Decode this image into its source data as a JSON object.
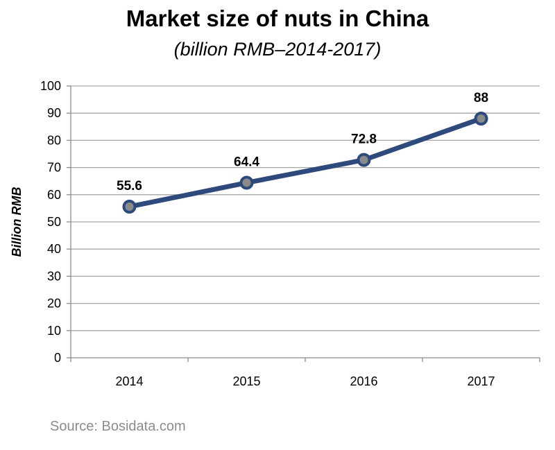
{
  "chart_data": {
    "type": "line",
    "title": "Market size of nuts in China",
    "subtitle": "(billion RMB–2014-2017)",
    "xlabel": "",
    "ylabel": "Billion RMB",
    "categories": [
      "2014",
      "2015",
      "2016",
      "2017"
    ],
    "series": [
      {
        "values": [
          55.6,
          64.4,
          72.8,
          88
        ],
        "data_labels": [
          "55.6",
          "64.4",
          "72.8",
          "88"
        ]
      }
    ],
    "ylim": [
      0,
      100
    ],
    "yticks": [
      0,
      10,
      20,
      30,
      40,
      50,
      60,
      70,
      80,
      90,
      100
    ],
    "grid": true,
    "legend": "none",
    "colors": {
      "line": "#2e4a7d",
      "marker_fill": "#8a8a8a",
      "grid": "#a6a6a6",
      "axis": "#8c8c8c"
    }
  },
  "source": "Source: Bosidata.com"
}
